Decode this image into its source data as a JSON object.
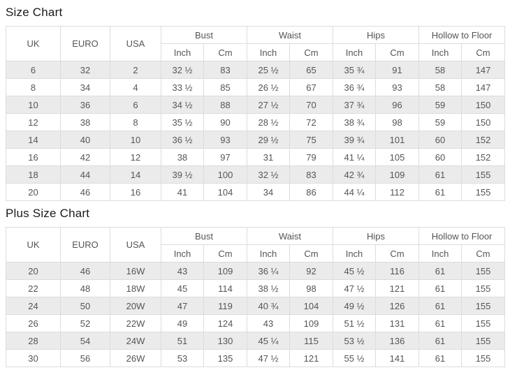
{
  "colors": {
    "row_stripe": "#ebebeb",
    "table_border": "#dcdcdc",
    "cell_text": "#555555",
    "title_text": "#1a1a1a"
  },
  "size_chart": {
    "title": "Size Chart",
    "headers": {
      "uk": "UK",
      "euro": "EURO",
      "usa": "USA",
      "bust": "Bust",
      "waist": "Waist",
      "hips": "Hips",
      "hollow_to_floor": "Hollow to Floor",
      "inch": "Inch",
      "cm": "Cm"
    },
    "rows": [
      [
        "6",
        "32",
        "2",
        "32 ½",
        "83",
        "25 ½",
        "65",
        "35 ¾",
        "91",
        "58",
        "147"
      ],
      [
        "8",
        "34",
        "4",
        "33 ½",
        "85",
        "26 ½",
        "67",
        "36 ¾",
        "93",
        "58",
        "147"
      ],
      [
        "10",
        "36",
        "6",
        "34 ½",
        "88",
        "27 ½",
        "70",
        "37 ¾",
        "96",
        "59",
        "150"
      ],
      [
        "12",
        "38",
        "8",
        "35 ½",
        "90",
        "28 ½",
        "72",
        "38 ¾",
        "98",
        "59",
        "150"
      ],
      [
        "14",
        "40",
        "10",
        "36 ½",
        "93",
        "29 ½",
        "75",
        "39 ¾",
        "101",
        "60",
        "152"
      ],
      [
        "16",
        "42",
        "12",
        "38",
        "97",
        "31",
        "79",
        "41 ¼",
        "105",
        "60",
        "152"
      ],
      [
        "18",
        "44",
        "14",
        "39 ½",
        "100",
        "32 ½",
        "83",
        "42 ¾",
        "109",
        "61",
        "155"
      ],
      [
        "20",
        "46",
        "16",
        "41",
        "104",
        "34",
        "86",
        "44 ¼",
        "112",
        "61",
        "155"
      ]
    ]
  },
  "plus_size_chart": {
    "title": "Plus Size Chart",
    "headers": {
      "uk": "UK",
      "euro": "EURO",
      "usa": "USA",
      "bust": "Bust",
      "waist": "Waist",
      "hips": "Hips",
      "hollow_to_floor": "Hollow to Floor",
      "inch": "Inch",
      "cm": "Cm"
    },
    "rows": [
      [
        "20",
        "46",
        "16W",
        "43",
        "109",
        "36 ¼",
        "92",
        "45 ½",
        "116",
        "61",
        "155"
      ],
      [
        "22",
        "48",
        "18W",
        "45",
        "114",
        "38 ½",
        "98",
        "47 ½",
        "121",
        "61",
        "155"
      ],
      [
        "24",
        "50",
        "20W",
        "47",
        "119",
        "40 ¾",
        "104",
        "49 ½",
        "126",
        "61",
        "155"
      ],
      [
        "26",
        "52",
        "22W",
        "49",
        "124",
        "43",
        "109",
        "51 ½",
        "131",
        "61",
        "155"
      ],
      [
        "28",
        "54",
        "24W",
        "51",
        "130",
        "45 ¼",
        "115",
        "53 ½",
        "136",
        "61",
        "155"
      ],
      [
        "30",
        "56",
        "26W",
        "53",
        "135",
        "47 ½",
        "121",
        "55 ½",
        "141",
        "61",
        "155"
      ]
    ]
  }
}
